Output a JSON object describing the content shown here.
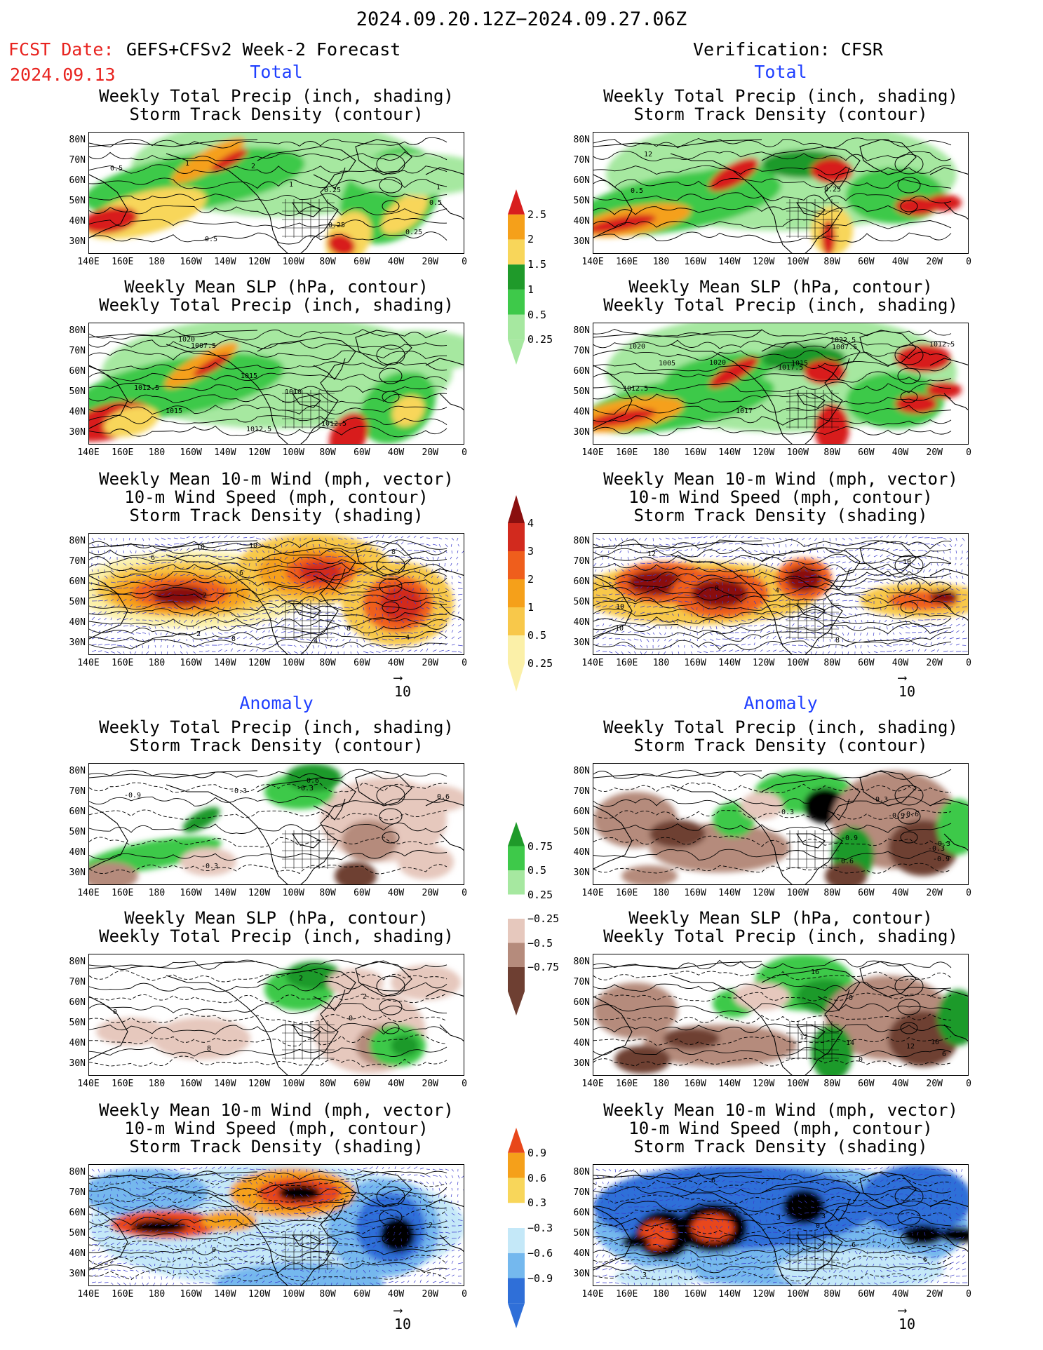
{
  "header": {
    "period": "2024.09.20.12Z−2024.09.27.06Z",
    "fcst_label": "FCST Date:",
    "fcst_model": "GEFS+CFSv2 Week-2 Forecast",
    "fcst_date": "2024.09.13",
    "verif": "Verification: CFSR"
  },
  "sections": {
    "total": "Total",
    "anomaly": "Anomaly"
  },
  "titles": {
    "p1a": "Weekly Total Precip (inch, shading)",
    "p1b": "Storm Track Density (contour)",
    "p2a": "Weekly Mean SLP (hPa, contour)",
    "p2b": "Weekly Total Precip (inch, shading)",
    "p3a": "Weekly Mean 10-m Wind (mph, vector)",
    "p3b": "10-m Wind Speed (mph, contour)",
    "p3c": "Storm Track Density (shading)"
  },
  "axes": {
    "lat": [
      "80N",
      "70N",
      "60N",
      "50N",
      "40N",
      "30N"
    ],
    "lon": [
      "140E",
      "160E",
      "180",
      "160W",
      "140W",
      "120W",
      "100W",
      "80W",
      "60W",
      "40W",
      "20W",
      "0"
    ]
  },
  "vector_ref": "10",
  "colorbars": {
    "precip_total": {
      "labels": [
        "2.5",
        "2",
        "1.5",
        "1",
        "0.5",
        "0.25"
      ],
      "colors": [
        "#d81e1e",
        "#f5a01a",
        "#f8d65a",
        "#1f9a2a",
        "#3ec94a",
        "#a6e8a0"
      ]
    },
    "storm_total": {
      "labels": [
        "4",
        "3",
        "2",
        "1",
        "0.5",
        "0.25"
      ],
      "colors": [
        "#8a0f0f",
        "#d22a1e",
        "#ef5e1c",
        "#f5a01a",
        "#f8c84a",
        "#fbf0a8"
      ]
    },
    "precip_anom": {
      "labels": [
        "0.75",
        "0.5",
        "0.25",
        "−0.25",
        "−0.5",
        "−0.75"
      ],
      "colors": [
        "#1f9a2a",
        "#3ec94a",
        "#a6e8a0",
        "#ffffff",
        "#e6c8bd",
        "#b58b7c",
        "#6e3f32"
      ]
    },
    "storm_anom": {
      "labels": [
        "0.9",
        "0.6",
        "0.3",
        "−0.3",
        "−0.6",
        "−0.9"
      ],
      "colors": [
        "#e8471a",
        "#f5a01a",
        "#f8d65a",
        "#ffffff",
        "#c4e8f8",
        "#74b8ee",
        "#2f6fd8"
      ]
    }
  },
  "contour_labels": {
    "L1": [
      "0.5",
      "0.25",
      "4",
      "2",
      "1",
      "0.5",
      "1",
      "0.25",
      "1",
      "0.25",
      "0.5"
    ],
    "R1": [
      "12",
      "0.5",
      "0.25"
    ],
    "L2": [
      "1015",
      "1012.5",
      "1010",
      "1012.5",
      "1007.5",
      "1020",
      "1012.5",
      "1015"
    ],
    "R2": [
      "1020",
      "1012.5",
      "1017",
      "1007.5",
      "1022.5",
      "1012.5",
      "1005",
      "1017.5",
      "1015",
      "1020"
    ],
    "L3": [
      "8",
      "4",
      "2",
      "8",
      "10",
      "6",
      "2",
      "4",
      "10",
      "6",
      "8"
    ],
    "R3": [
      "4",
      "10",
      "12",
      "8",
      "8",
      "10",
      "10"
    ],
    "L4": [
      "-0.3",
      "0.6",
      "0.6",
      "-0.3",
      "-0.3",
      "-0.9"
    ],
    "R4": [
      "-0.9",
      "0.3",
      "-0.9",
      "-0.3",
      "0.6",
      "0.3",
      "-0.6",
      "-0.3",
      "-0.9"
    ],
    "L5": [
      "2",
      "2",
      "0",
      "0",
      "8"
    ],
    "R5": [
      "12",
      "10",
      "12",
      "16",
      "14",
      "0",
      "0",
      "6"
    ],
    "L6": [
      "2",
      "2",
      "2",
      "2",
      "0"
    ],
    "R6": [
      "3",
      "6",
      "6",
      "3",
      "6",
      "3",
      "0",
      "3"
    ]
  }
}
